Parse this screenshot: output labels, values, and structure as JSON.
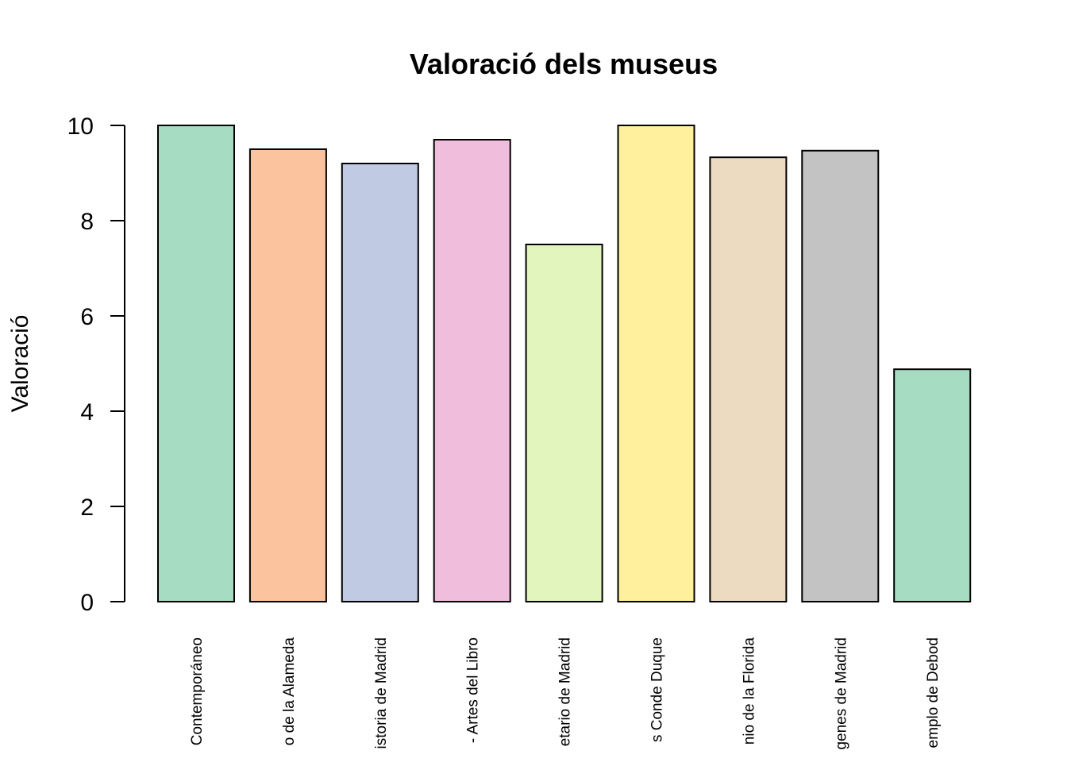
{
  "chart_data": {
    "type": "bar",
    "title": "Valoració dels museus",
    "xlabel": "",
    "ylabel": "Valoració",
    "ylim": [
      0,
      10
    ],
    "yticks": [
      0,
      2,
      4,
      6,
      8,
      10
    ],
    "grid": false,
    "categories": [
      "Contemporáneo",
      "o de la Alameda",
      "istoria de Madrid",
      "- Artes del Libro",
      "etario de Madrid",
      "s Conde Duque",
      "nio de la Florida",
      "genes de Madrid",
      "emplo de Debod"
    ],
    "values": [
      10.0,
      9.5,
      9.2,
      9.7,
      7.5,
      10.0,
      9.33,
      9.47,
      4.88
    ],
    "colors": [
      "#A6DDC2",
      "#FBC49E",
      "#C0CAE3",
      "#F0BDDD",
      "#E1F5BC",
      "#FEF09C",
      "#EDDBC1",
      "#C3C3C3",
      "#A6DDC2"
    ]
  }
}
